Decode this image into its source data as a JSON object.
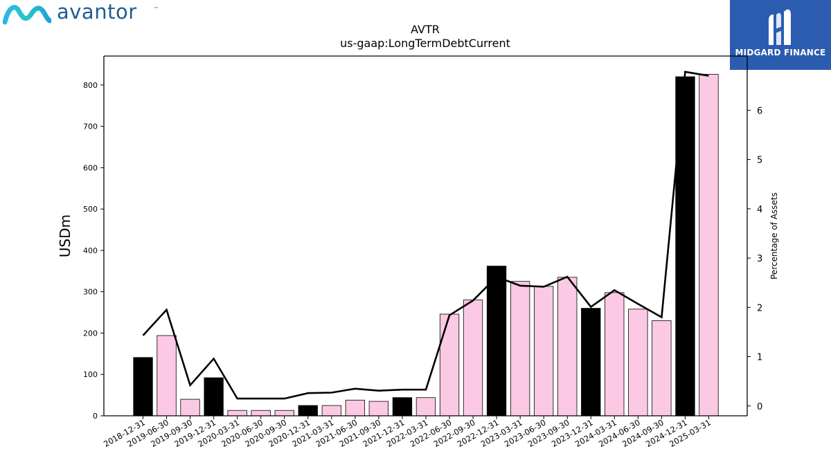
{
  "header": {
    "brand_name": "avantor",
    "brand_tm": "™",
    "badge_name": "MIDGARD FINANCE",
    "colors": {
      "brand": "#1d5c96",
      "badge_bg": "#2b5cb0"
    }
  },
  "chart_data": {
    "type": "bar",
    "title": "AVTR",
    "subtitle": "us-gaap:LongTermDebtCurrent",
    "ylabel": "USDm",
    "y2label": "Percentage of Assets",
    "ylim": [
      0,
      870
    ],
    "y2lim": [
      -0.2,
      7.1
    ],
    "yticks": [
      0,
      100,
      200,
      300,
      400,
      500,
      600,
      700,
      800
    ],
    "y2ticks": [
      0,
      1,
      2,
      3,
      4,
      5,
      6
    ],
    "categories": [
      "2018-12-31",
      "2019-06-30",
      "2019-09-30",
      "2019-12-31",
      "2020-03-31",
      "2020-06-30",
      "2020-09-30",
      "2020-12-31",
      "2021-03-31",
      "2021-06-30",
      "2021-09-30",
      "2021-12-31",
      "2022-03-31",
      "2022-06-30",
      "2022-09-30",
      "2022-12-31",
      "2023-03-31",
      "2023-06-30",
      "2023-09-30",
      "2023-12-31",
      "2024-03-31",
      "2024-06-30",
      "2024-09-30",
      "2024-12-31",
      "2025-03-31"
    ],
    "series": [
      {
        "type": "bar",
        "values": [
          141,
          194,
          40,
          92,
          13,
          13,
          13,
          25,
          25,
          38,
          35,
          44,
          44,
          246,
          280,
          362,
          325,
          313,
          335,
          260,
          298,
          258,
          230,
          820,
          826
        ]
      },
      {
        "type": "line",
        "axis": "right",
        "values": [
          1.43,
          1.95,
          0.42,
          0.96,
          0.15,
          0.15,
          0.15,
          0.26,
          0.27,
          0.35,
          0.31,
          0.33,
          0.33,
          1.84,
          2.14,
          2.62,
          2.44,
          2.42,
          2.62,
          2.01,
          2.35,
          2.07,
          1.8,
          6.78,
          6.7
        ]
      }
    ],
    "annual_flags": [
      true,
      false,
      false,
      true,
      false,
      false,
      false,
      true,
      false,
      false,
      false,
      true,
      false,
      false,
      false,
      true,
      false,
      false,
      false,
      true,
      false,
      false,
      false,
      true,
      false
    ],
    "colors": {
      "annual": "#000000",
      "quarterly": "#fbc9e3",
      "line": "#000000"
    },
    "grid": false,
    "legend": "none"
  }
}
